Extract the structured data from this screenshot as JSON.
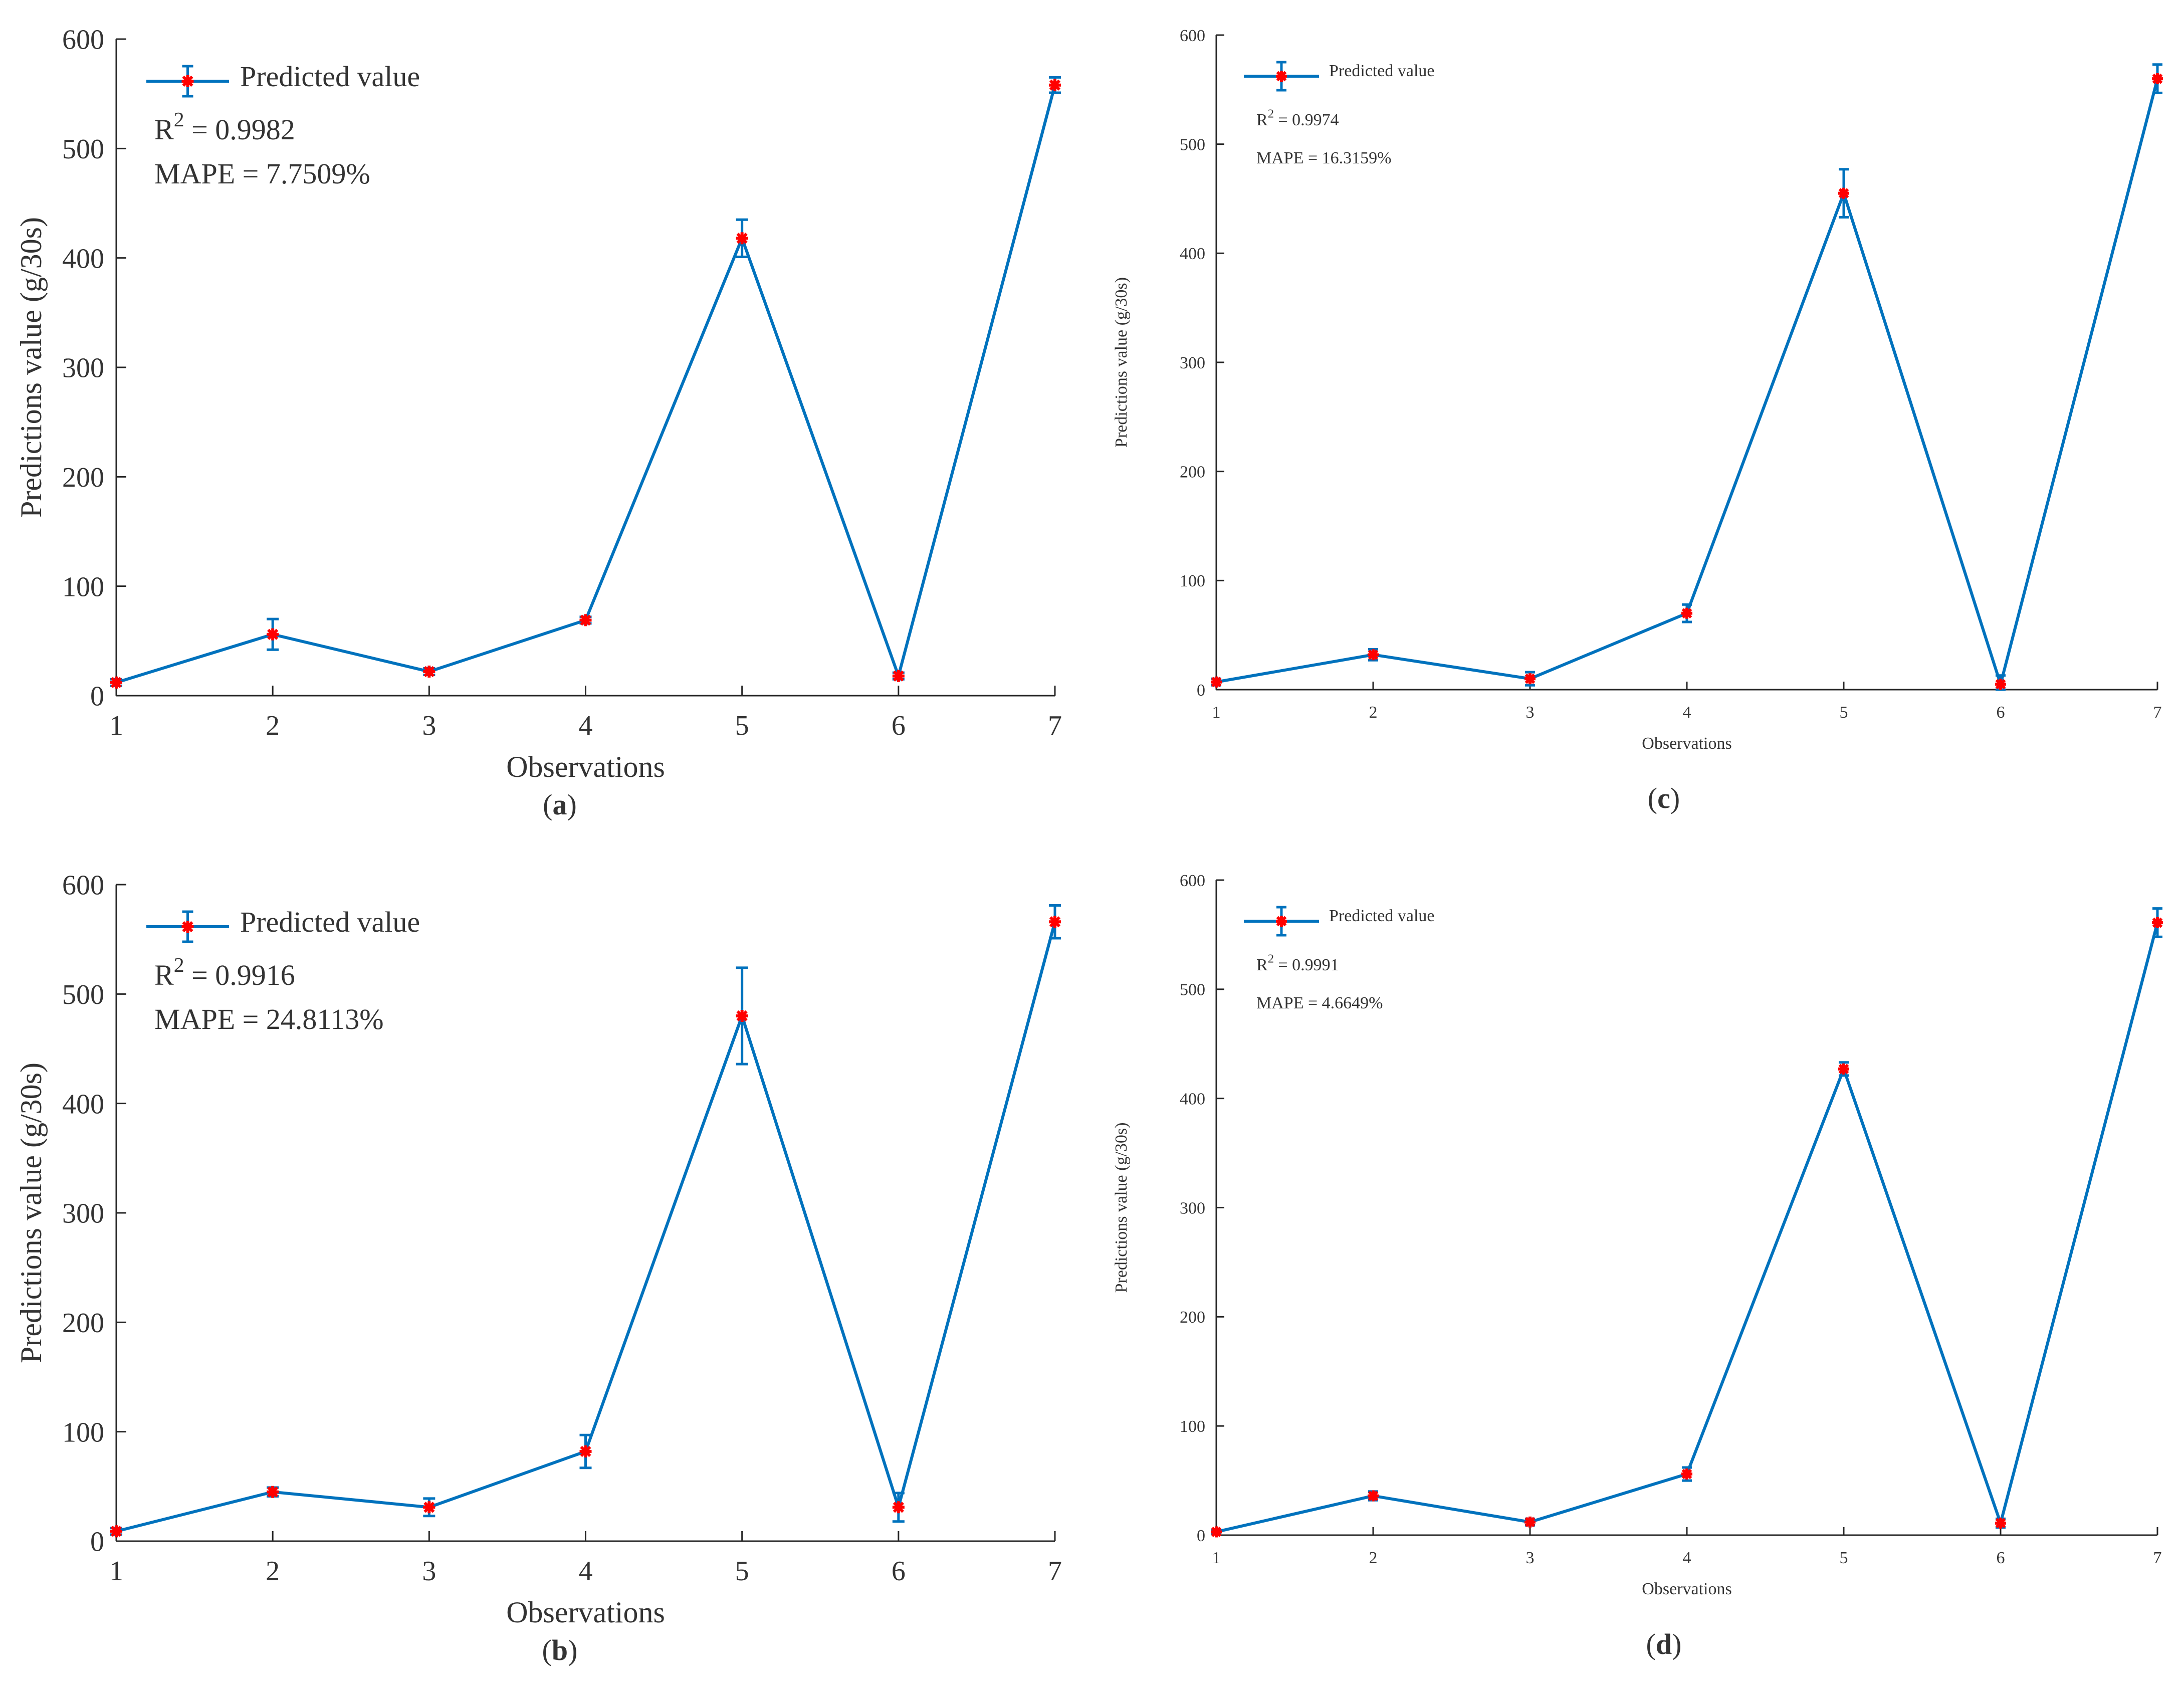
{
  "colors": {
    "line": "#0072BD",
    "marker": "#FF0000",
    "axis": "#262626",
    "text": "#333333"
  },
  "chart_data": [
    {
      "id": "a",
      "caption": "a",
      "type": "line",
      "title": "",
      "xlabel": "Observations",
      "ylabel": "Predictions value (g/30s)",
      "xlim": [
        1,
        7
      ],
      "ylim": [
        0,
        600
      ],
      "xticks": [
        1,
        2,
        3,
        4,
        5,
        6,
        7
      ],
      "yticks": [
        0,
        100,
        200,
        300,
        400,
        500,
        600
      ],
      "legend": "top-left",
      "series": [
        {
          "name": "Predicted value",
          "x": [
            1,
            2,
            3,
            4,
            5,
            6,
            7
          ],
          "values": [
            12,
            56,
            22,
            69,
            418,
            18,
            558
          ],
          "error": [
            3,
            14,
            3,
            3,
            17,
            3,
            7
          ]
        }
      ],
      "annotation": {
        "r2_prefix": "R",
        "r2_sup": "2",
        "r2_value": " = 0.9982",
        "mape": "MAPE = 7.7509%"
      }
    },
    {
      "id": "b",
      "caption": "b",
      "type": "line",
      "title": "",
      "xlabel": "Observations",
      "ylabel": "Predictions value (g/30s)",
      "xlim": [
        1,
        7
      ],
      "ylim": [
        0,
        600
      ],
      "xticks": [
        1,
        2,
        3,
        4,
        5,
        6,
        7
      ],
      "yticks": [
        0,
        100,
        200,
        300,
        400,
        500,
        600
      ],
      "legend": "top-left",
      "series": [
        {
          "name": "Predicted value",
          "x": [
            1,
            2,
            3,
            4,
            5,
            6,
            7
          ],
          "values": [
            9,
            45,
            31,
            82,
            480,
            31,
            566
          ],
          "error": [
            3,
            4,
            8,
            15,
            44,
            13,
            15
          ]
        }
      ],
      "annotation": {
        "r2_prefix": "R",
        "r2_sup": "2",
        "r2_value": " = 0.9916",
        "mape": "MAPE = 24.8113%"
      }
    },
    {
      "id": "c",
      "caption": "c",
      "type": "line",
      "title": "",
      "xlabel": "Observations",
      "ylabel": "Predictions value (g/30s)",
      "xlim": [
        1,
        7
      ],
      "ylim": [
        0,
        600
      ],
      "xticks": [
        1,
        2,
        3,
        4,
        5,
        6,
        7
      ],
      "yticks": [
        0,
        100,
        200,
        300,
        400,
        500,
        600
      ],
      "legend": "top-left",
      "series": [
        {
          "name": "Predicted value",
          "x": [
            1,
            2,
            3,
            4,
            5,
            6,
            7
          ],
          "values": [
            7,
            32,
            10,
            70,
            455,
            5,
            560
          ],
          "error": [
            3,
            5,
            6,
            8,
            22,
            8,
            13
          ]
        }
      ],
      "annotation": {
        "r2_prefix": "R",
        "r2_sup": "2",
        "r2_value": " = 0.9974",
        "mape": "MAPE = 16.3159%"
      }
    },
    {
      "id": "d",
      "caption": "d",
      "type": "line",
      "title": "",
      "xlabel": "Observations",
      "ylabel": "Predictions value (g/30s)",
      "xlim": [
        1,
        7
      ],
      "ylim": [
        0,
        600
      ],
      "xticks": [
        1,
        2,
        3,
        4,
        5,
        6,
        7
      ],
      "yticks": [
        0,
        100,
        200,
        300,
        400,
        500,
        600
      ],
      "legend": "top-left",
      "series": [
        {
          "name": "Predicted value",
          "x": [
            1,
            2,
            3,
            4,
            5,
            6,
            7
          ],
          "values": [
            3,
            36,
            12,
            56,
            427,
            11,
            561
          ],
          "error": [
            2,
            4,
            3,
            6,
            6,
            4,
            13
          ]
        }
      ],
      "annotation": {
        "r2_prefix": "R",
        "r2_sup": "2",
        "r2_value": " = 0.9991",
        "mape": "MAPE = 4.6649%"
      }
    }
  ]
}
